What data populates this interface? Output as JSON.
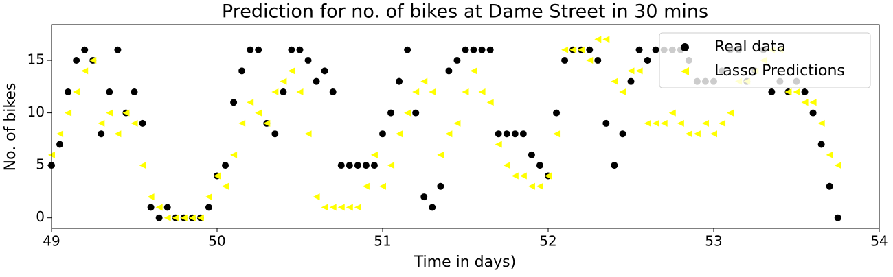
{
  "chart_data": {
    "type": "scatter",
    "title": "Prediction for no. of bikes at Dame Street in 30 mins",
    "xlabel": "Time in days)",
    "ylabel": "No. of bikes",
    "x": [
      49,
      49.05,
      49.1,
      49.15,
      49.2,
      49.25,
      49.3,
      49.35,
      49.4,
      49.45,
      49.5,
      49.55,
      49.6,
      49.65,
      49.7,
      49.75,
      49.8,
      49.85,
      49.9,
      49.95,
      50,
      50.05,
      50.1,
      50.15,
      50.2,
      50.25,
      50.3,
      50.35,
      50.4,
      50.45,
      50.5,
      50.55,
      50.6,
      50.65,
      50.7,
      50.75,
      50.8,
      50.85,
      50.9,
      50.95,
      51,
      51.05,
      51.1,
      51.15,
      51.2,
      51.25,
      51.3,
      51.35,
      51.4,
      51.45,
      51.5,
      51.55,
      51.6,
      51.65,
      51.7,
      51.75,
      51.8,
      51.85,
      51.9,
      51.95,
      52,
      52.05,
      52.1,
      52.15,
      52.2,
      52.25,
      52.3,
      52.35,
      52.4,
      52.45,
      52.5,
      52.55,
      52.6,
      52.65,
      52.7,
      52.75,
      52.8,
      52.85,
      52.9,
      52.95,
      53,
      53.05,
      53.1,
      53.15,
      53.2,
      53.25,
      53.3,
      53.35,
      53.4,
      53.45,
      53.5,
      53.55,
      53.6,
      53.65,
      53.7,
      53.75
    ],
    "series": [
      {
        "name": "Real data",
        "color": "#000000",
        "marker": "circle",
        "values": [
          5,
          7,
          12,
          15,
          16,
          15,
          8,
          12,
          16,
          10,
          12,
          9,
          1,
          0,
          1,
          0,
          0,
          0,
          0,
          1,
          4,
          5,
          11,
          14,
          16,
          16,
          9,
          8,
          12,
          16,
          16,
          15,
          13,
          14,
          12,
          5,
          5,
          5,
          5,
          5,
          8,
          10,
          13,
          16,
          10,
          2,
          1,
          3,
          14,
          15,
          16,
          16,
          16,
          16,
          8,
          8,
          8,
          8,
          6,
          5,
          4,
          10,
          15,
          16,
          16,
          16,
          15,
          9,
          5,
          8,
          13,
          16,
          15,
          16,
          16,
          16,
          16,
          15,
          13,
          13,
          13,
          14,
          16,
          16,
          13,
          14,
          16,
          12,
          13,
          12,
          13,
          12,
          10,
          7,
          3,
          0
        ]
      },
      {
        "name": "Lasso Predictions",
        "color": "#ffff00",
        "marker": "triangle-left",
        "values": [
          6,
          8,
          10,
          12,
          14,
          15,
          9,
          10,
          8,
          10,
          9,
          5,
          2,
          1,
          0,
          0,
          0,
          0,
          0,
          2,
          4,
          3,
          6,
          9,
          11,
          10,
          9,
          12,
          13,
          14,
          12,
          8,
          2,
          1,
          1,
          1,
          1,
          1,
          3,
          6,
          3,
          5,
          8,
          10,
          12,
          13,
          12,
          6,
          8,
          9,
          12,
          14,
          12,
          11,
          7,
          5,
          4,
          4,
          3,
          3,
          4,
          8,
          16,
          16,
          16,
          15,
          17,
          17,
          13,
          12,
          14,
          14,
          9,
          9,
          9,
          10,
          9,
          8,
          8,
          9,
          8,
          9,
          10,
          13,
          13,
          14,
          15,
          16,
          16,
          12,
          12,
          11,
          11,
          9,
          6,
          5
        ]
      }
    ],
    "xlim": [
      49,
      54
    ],
    "xticks": [
      49,
      50,
      51,
      52,
      53,
      54
    ],
    "ylim": [
      -1,
      18.4
    ],
    "yticks": [
      0,
      5,
      10,
      15
    ],
    "grid": false,
    "legend": "upper right"
  }
}
